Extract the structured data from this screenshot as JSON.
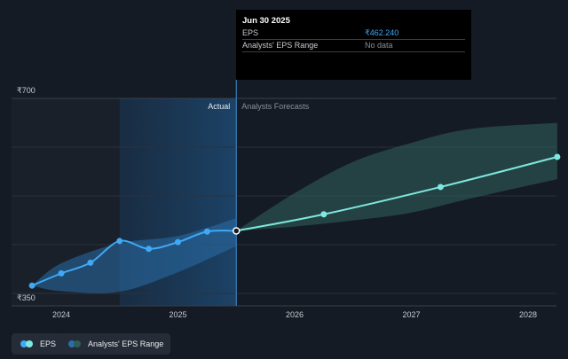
{
  "chart_data": {
    "type": "line",
    "currency": "₹",
    "y_ticks": [
      {
        "value": 700,
        "label": "₹700"
      },
      {
        "value": 350,
        "label": "₹350"
      }
    ],
    "ylim": [
      350,
      700
    ],
    "xlim": [
      2023.73,
      2028.25
    ],
    "x_ticks": [
      {
        "value": 2024,
        "label": "2024"
      },
      {
        "value": 2025,
        "label": "2025"
      },
      {
        "value": 2026,
        "label": "2026"
      },
      {
        "value": 2027,
        "label": "2027"
      },
      {
        "value": 2028,
        "label": "2028"
      }
    ],
    "divider_x": 2025.5,
    "highlight_start_x": 2024.5,
    "section_labels": {
      "actual": "Actual",
      "forecast": "Analysts Forecasts"
    },
    "series": [
      {
        "name": "EPS",
        "color": "#3fa9f5",
        "points": [
          {
            "x": 2023.75,
            "y": 364
          },
          {
            "x": 2024.0,
            "y": 386
          },
          {
            "x": 2024.25,
            "y": 405
          },
          {
            "x": 2024.5,
            "y": 444
          },
          {
            "x": 2024.75,
            "y": 430
          },
          {
            "x": 2025.0,
            "y": 442
          },
          {
            "x": 2025.25,
            "y": 461
          },
          {
            "x": 2025.5,
            "y": 462.24
          }
        ]
      },
      {
        "name": "EPS Forecast",
        "color": "#7ee8e0",
        "points": [
          {
            "x": 2025.5,
            "y": 462.24
          },
          {
            "x": 2026.25,
            "y": 492
          },
          {
            "x": 2027.25,
            "y": 541
          },
          {
            "x": 2028.25,
            "y": 595
          }
        ]
      }
    ],
    "actual_range": {
      "color": "#2a6ea8",
      "upper": [
        {
          "x": 2023.75,
          "y": 364
        },
        {
          "x": 2024.0,
          "y": 404
        },
        {
          "x": 2024.5,
          "y": 440
        },
        {
          "x": 2025.0,
          "y": 453
        },
        {
          "x": 2025.5,
          "y": 485
        }
      ],
      "lower": [
        {
          "x": 2023.75,
          "y": 364
        },
        {
          "x": 2024.0,
          "y": 354
        },
        {
          "x": 2024.5,
          "y": 353
        },
        {
          "x": 2025.0,
          "y": 388
        },
        {
          "x": 2025.5,
          "y": 435
        }
      ]
    },
    "forecast_range": {
      "name": "Analysts' EPS Range",
      "color": "#2f5d58",
      "upper": [
        {
          "x": 2025.5,
          "y": 462.24
        },
        {
          "x": 2026.0,
          "y": 530
        },
        {
          "x": 2026.5,
          "y": 586
        },
        {
          "x": 2027.0,
          "y": 620
        },
        {
          "x": 2027.5,
          "y": 645
        },
        {
          "x": 2028.25,
          "y": 656
        }
      ],
      "lower": [
        {
          "x": 2025.5,
          "y": 462.24
        },
        {
          "x": 2026.0,
          "y": 470
        },
        {
          "x": 2026.5,
          "y": 481
        },
        {
          "x": 2027.0,
          "y": 495
        },
        {
          "x": 2027.5,
          "y": 520
        },
        {
          "x": 2028.25,
          "y": 555
        }
      ]
    },
    "legend": [
      {
        "label": "EPS",
        "colors": [
          "#3fa9f5",
          "#7ee8e0"
        ]
      },
      {
        "label": "Analysts' EPS Range",
        "colors": [
          "#2a6ea8",
          "#2f5d58"
        ]
      }
    ],
    "grid": true
  },
  "tooltip": {
    "date": "Jun 30 2025",
    "rows": [
      {
        "label": "EPS",
        "value": "₹462.240",
        "color": "#3fa9f5"
      },
      {
        "label": "Analysts' EPS Range",
        "value": "No data",
        "color": "#8a9099"
      }
    ]
  }
}
